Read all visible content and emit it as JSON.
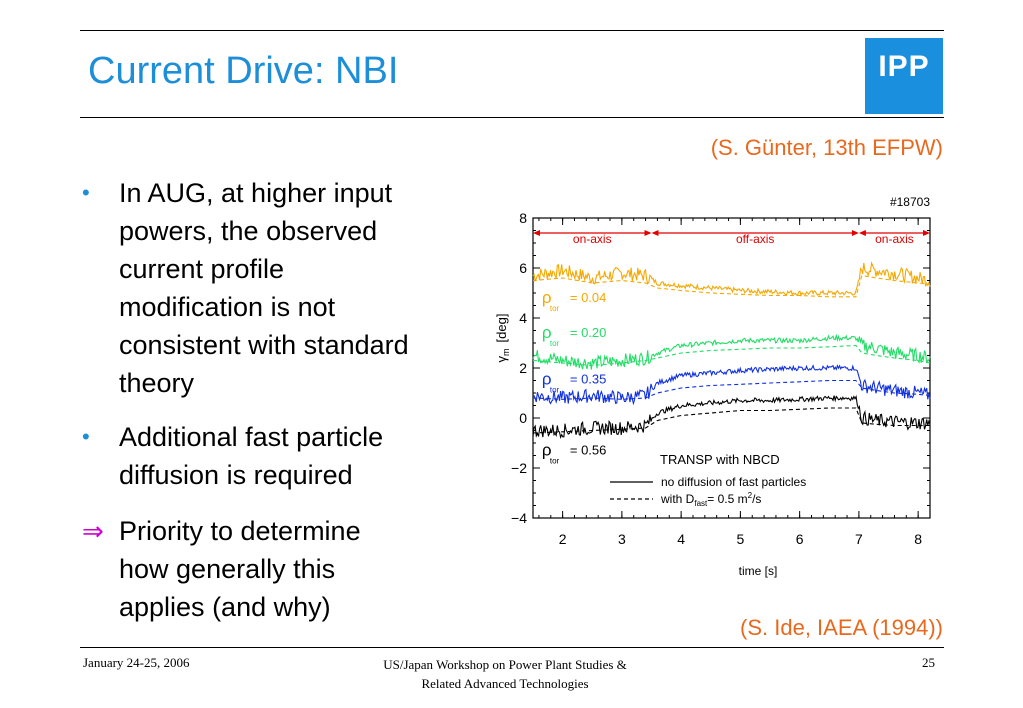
{
  "title": "Current Drive: NBI",
  "logo_text": "IPP",
  "citation_top": "(S. Günter, 13th EFPW)",
  "citation_bottom": "(S. Ide, IAEA (1994))",
  "bullets": [
    {
      "marker": "•",
      "text": "In AUG, at higher input\npowers, the observed\ncurrent profile\nmodification is not\nconsistent with standard\ntheory"
    },
    {
      "marker": "•",
      "text": "Additional fast particle\ndiffusion is required"
    },
    {
      "marker": "⇒",
      "text": "Priority to determine\nhow generally this\napplies (and why)"
    }
  ],
  "footer": {
    "date": "January 24-25, 2006",
    "workshop_line1": "US/Japan Workshop on Power Plant Studies &",
    "workshop_line2": "Related Advanced Technologies",
    "page": "25"
  },
  "chart_data": {
    "type": "line",
    "shot_label": "#18703",
    "xlabel": "time [s]",
    "ylabel_symbol": "γ",
    "ylabel_sub": "m",
    "ylabel_unit": "[deg]",
    "xlim": [
      1.5,
      8.2
    ],
    "ylim": [
      -4,
      8
    ],
    "xticks": [
      2,
      3,
      4,
      5,
      6,
      7,
      8
    ],
    "yticks": [
      8,
      6,
      4,
      2,
      0,
      -2,
      -4
    ],
    "ytick_labels": [
      "8",
      "6",
      "4",
      "2",
      "0",
      "−2",
      "−4"
    ],
    "phases": [
      {
        "label": "on-axis",
        "x_start": 1.5,
        "x_end": 3.5,
        "color": "#e00000"
      },
      {
        "label": "off-axis",
        "x_start": 3.5,
        "x_end": 7.0,
        "color": "#e00000"
      },
      {
        "label": "on-axis",
        "x_start": 7.0,
        "x_end": 8.2,
        "color": "#e00000"
      }
    ],
    "series": [
      {
        "rho": "= 0.04",
        "color": "#f5a800",
        "solid": [
          [
            1.5,
            5.7
          ],
          [
            2.0,
            5.9
          ],
          [
            2.5,
            5.6
          ],
          [
            3.0,
            5.8
          ],
          [
            3.4,
            5.7
          ],
          [
            3.6,
            5.4
          ],
          [
            4.0,
            5.3
          ],
          [
            4.5,
            5.2
          ],
          [
            5.0,
            5.1
          ],
          [
            5.5,
            5.05
          ],
          [
            6.0,
            5.0
          ],
          [
            6.5,
            5.0
          ],
          [
            6.95,
            5.0
          ],
          [
            7.05,
            6.0
          ],
          [
            7.3,
            5.9
          ],
          [
            7.6,
            5.8
          ],
          [
            8.0,
            5.6
          ],
          [
            8.2,
            5.5
          ]
        ],
        "dashed": [
          [
            1.5,
            5.5
          ],
          [
            2.0,
            5.6
          ],
          [
            2.5,
            5.4
          ],
          [
            3.0,
            5.5
          ],
          [
            3.4,
            5.4
          ],
          [
            3.6,
            5.2
          ],
          [
            4.0,
            5.1
          ],
          [
            4.5,
            5.0
          ],
          [
            5.0,
            4.95
          ],
          [
            5.5,
            4.9
          ],
          [
            6.0,
            4.9
          ],
          [
            6.5,
            4.85
          ],
          [
            6.95,
            4.85
          ],
          [
            7.05,
            5.7
          ],
          [
            7.3,
            5.6
          ],
          [
            7.6,
            5.5
          ],
          [
            8.0,
            5.4
          ],
          [
            8.2,
            5.35
          ]
        ]
      },
      {
        "rho": "= 0.20",
        "color": "#22dd66",
        "solid": [
          [
            1.5,
            2.5
          ],
          [
            2.0,
            2.3
          ],
          [
            2.5,
            2.2
          ],
          [
            3.0,
            2.3
          ],
          [
            3.4,
            2.4
          ],
          [
            3.6,
            2.6
          ],
          [
            4.0,
            2.9
          ],
          [
            4.5,
            3.0
          ],
          [
            5.0,
            3.1
          ],
          [
            5.5,
            3.1
          ],
          [
            6.0,
            3.1
          ],
          [
            6.5,
            3.2
          ],
          [
            6.95,
            3.2
          ],
          [
            7.05,
            2.9
          ],
          [
            7.3,
            2.8
          ],
          [
            7.6,
            2.6
          ],
          [
            8.0,
            2.5
          ],
          [
            8.2,
            2.4
          ]
        ],
        "dashed": [
          [
            1.5,
            2.3
          ],
          [
            2.0,
            2.2
          ],
          [
            2.5,
            2.1
          ],
          [
            3.0,
            2.2
          ],
          [
            3.4,
            2.3
          ],
          [
            3.6,
            2.4
          ],
          [
            4.0,
            2.6
          ],
          [
            4.5,
            2.7
          ],
          [
            5.0,
            2.75
          ],
          [
            5.5,
            2.8
          ],
          [
            6.0,
            2.8
          ],
          [
            6.5,
            2.85
          ],
          [
            6.95,
            2.9
          ],
          [
            7.05,
            2.6
          ],
          [
            7.3,
            2.5
          ],
          [
            7.6,
            2.4
          ],
          [
            8.0,
            2.3
          ],
          [
            8.2,
            2.2
          ]
        ]
      },
      {
        "rho": "= 0.35",
        "color": "#1030e0",
        "solid": [
          [
            1.5,
            0.9
          ],
          [
            2.0,
            0.8
          ],
          [
            2.5,
            0.9
          ],
          [
            3.0,
            0.8
          ],
          [
            3.4,
            0.9
          ],
          [
            3.6,
            1.4
          ],
          [
            4.0,
            1.7
          ],
          [
            4.5,
            1.8
          ],
          [
            5.0,
            1.9
          ],
          [
            5.5,
            1.95
          ],
          [
            6.0,
            2.0
          ],
          [
            6.5,
            2.0
          ],
          [
            6.95,
            2.0
          ],
          [
            7.05,
            1.3
          ],
          [
            7.3,
            1.2
          ],
          [
            7.6,
            1.1
          ],
          [
            8.0,
            1.0
          ],
          [
            8.2,
            0.9
          ]
        ],
        "dashed": [
          [
            1.5,
            0.8
          ],
          [
            2.0,
            0.75
          ],
          [
            2.5,
            0.8
          ],
          [
            3.0,
            0.75
          ],
          [
            3.4,
            0.8
          ],
          [
            3.6,
            1.0
          ],
          [
            4.0,
            1.2
          ],
          [
            4.5,
            1.3
          ],
          [
            5.0,
            1.35
          ],
          [
            5.5,
            1.4
          ],
          [
            6.0,
            1.45
          ],
          [
            6.5,
            1.5
          ],
          [
            6.95,
            1.5
          ],
          [
            7.05,
            1.2
          ],
          [
            7.3,
            1.1
          ],
          [
            7.6,
            1.0
          ],
          [
            8.0,
            0.95
          ],
          [
            8.2,
            0.9
          ]
        ]
      },
      {
        "rho": "= 0.56",
        "color": "#000000",
        "solid": [
          [
            1.5,
            -0.5
          ],
          [
            2.0,
            -0.5
          ],
          [
            2.5,
            -0.4
          ],
          [
            3.0,
            -0.4
          ],
          [
            3.4,
            -0.3
          ],
          [
            3.6,
            0.2
          ],
          [
            4.0,
            0.5
          ],
          [
            4.5,
            0.6
          ],
          [
            5.0,
            0.7
          ],
          [
            5.5,
            0.7
          ],
          [
            6.0,
            0.75
          ],
          [
            6.5,
            0.8
          ],
          [
            6.95,
            0.8
          ],
          [
            7.05,
            0.0
          ],
          [
            7.3,
            -0.1
          ],
          [
            7.6,
            -0.15
          ],
          [
            8.0,
            -0.2
          ],
          [
            8.2,
            -0.2
          ]
        ],
        "dashed": [
          [
            1.5,
            -0.6
          ],
          [
            2.0,
            -0.55
          ],
          [
            2.5,
            -0.5
          ],
          [
            3.0,
            -0.45
          ],
          [
            3.4,
            -0.4
          ],
          [
            3.6,
            -0.1
          ],
          [
            4.0,
            0.1
          ],
          [
            4.5,
            0.2
          ],
          [
            5.0,
            0.3
          ],
          [
            5.5,
            0.3
          ],
          [
            6.0,
            0.35
          ],
          [
            6.5,
            0.4
          ],
          [
            6.95,
            0.4
          ],
          [
            7.05,
            -0.2
          ],
          [
            7.3,
            -0.25
          ],
          [
            7.6,
            -0.3
          ],
          [
            8.0,
            -0.3
          ],
          [
            8.2,
            -0.3
          ]
        ]
      }
    ],
    "rho_symbol": "ρ",
    "rho_sub": "tor",
    "legend": {
      "title": "TRANSP with NBCD",
      "solid_label": "no diffusion of fast particles",
      "dashed_label_pre": "with D",
      "dashed_label_sub": "fast",
      "dashed_label_post": "= 0.5 m",
      "dashed_label_sup": "2",
      "dashed_label_end": "/s"
    }
  }
}
